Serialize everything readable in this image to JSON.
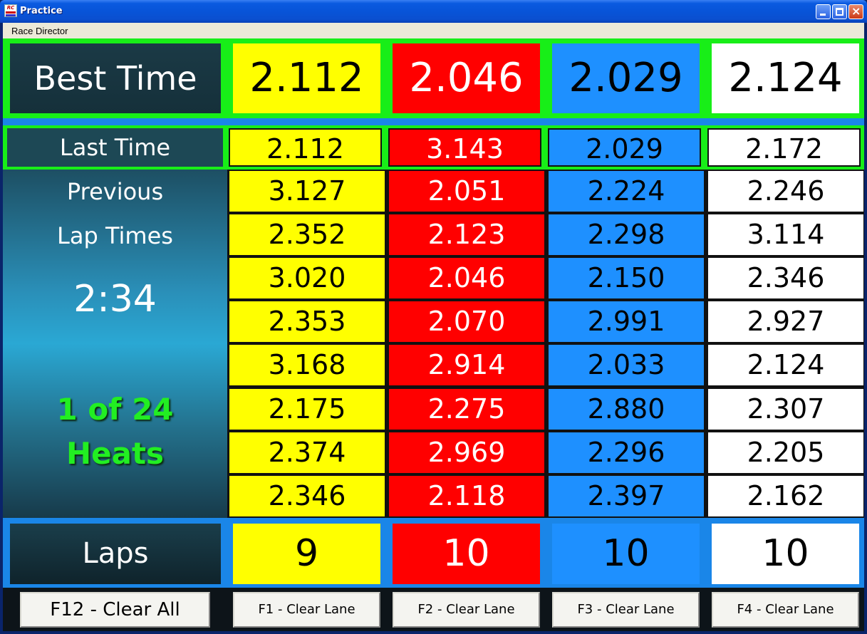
{
  "window": {
    "title": "Practice",
    "icon_text": "RC"
  },
  "menu": {
    "items": [
      "Race Director"
    ]
  },
  "colors": {
    "lane1": "#ffff00",
    "lane2": "#ff0000",
    "lane3": "#1e90ff",
    "lane4": "#ffffff",
    "heats_text": "#22ee22",
    "frame": "#18ee18"
  },
  "best": {
    "label": "Best Time",
    "values": [
      "2.112",
      "2.046",
      "2.029",
      "2.124"
    ]
  },
  "last": {
    "label": "Last Time",
    "values": [
      "2.112",
      "3.143",
      "2.029",
      "2.172"
    ]
  },
  "side": {
    "prev_line1": "Previous",
    "prev_line2": "Lap Times",
    "clock": "2:34",
    "heat_line1": "1 of 24",
    "heat_line2": "Heats"
  },
  "previous_laps": [
    [
      "3.127",
      "2.051",
      "2.224",
      "2.246"
    ],
    [
      "2.352",
      "2.123",
      "2.298",
      "3.114"
    ],
    [
      "3.020",
      "2.046",
      "2.150",
      "2.346"
    ],
    [
      "2.353",
      "2.070",
      "2.991",
      "2.927"
    ],
    [
      "3.168",
      "2.914",
      "2.033",
      "2.124"
    ],
    [
      "2.175",
      "2.275",
      "2.880",
      "2.307"
    ],
    [
      "2.374",
      "2.969",
      "2.296",
      "2.205"
    ],
    [
      "2.346",
      "2.118",
      "2.397",
      "2.162"
    ]
  ],
  "laps": {
    "label": "Laps",
    "values": [
      "9",
      "10",
      "10",
      "10"
    ]
  },
  "buttons": {
    "clear_all": "F12 - Clear All",
    "lanes": [
      "F1 - Clear Lane",
      "F2 - Clear Lane",
      "F3 - Clear Lane",
      "F4 - Clear Lane"
    ]
  }
}
